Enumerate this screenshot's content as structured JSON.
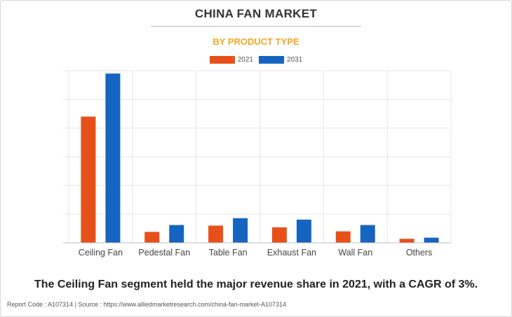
{
  "header": {
    "title": "CHINA FAN MARKET",
    "subtitle": "BY PRODUCT TYPE"
  },
  "colors": {
    "series_2021": "#e8501a",
    "series_2031": "#1565c0",
    "subtitle": "#f5a623"
  },
  "chart_data": {
    "type": "bar",
    "categories": [
      "Ceiling Fan",
      "Pedestal Fan",
      "Table Fan",
      "Exhaust Fan",
      "Wall Fan",
      "Others"
    ],
    "series": [
      {
        "name": "2021",
        "values": [
          44,
          3.8,
          6.0,
          5.4,
          4.0,
          1.4
        ]
      },
      {
        "name": "2031",
        "values": [
          59,
          6.2,
          8.6,
          8.1,
          6.2,
          1.8
        ]
      }
    ],
    "ylim": [
      0,
      60
    ],
    "y_gridlines": 6,
    "grid": true,
    "legend_position": "top-center",
    "title": "",
    "xlabel": "",
    "ylabel": ""
  },
  "caption": "The Ceiling Fan segment held the major revenue share in 2021, with a CAGR of 3%.",
  "footer": "Report Code : A107314  |  Source : https://www.alliedmarketresearch.com/china-fan-market-A107314"
}
